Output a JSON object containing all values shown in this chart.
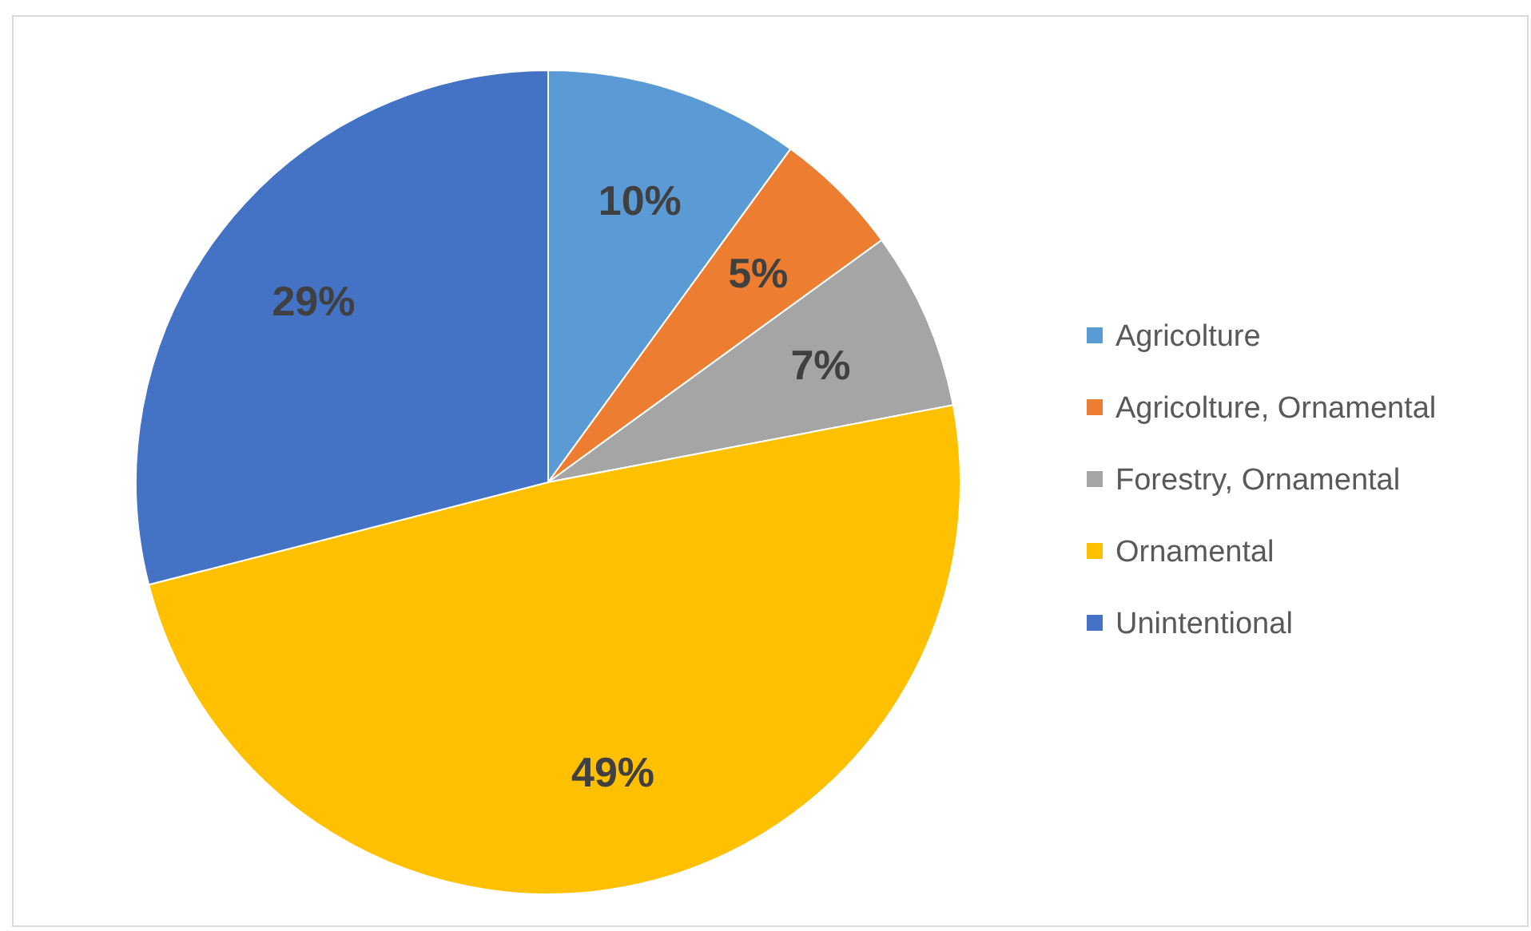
{
  "chart_data": {
    "type": "pie",
    "categories": [
      "Agricolture",
      "Agricolture, Ornamental",
      "Forestry, Ornamental",
      "Ornamental",
      "Unintentional"
    ],
    "values": [
      10,
      5,
      7,
      49,
      29
    ],
    "colors": [
      "#5b9bd5",
      "#ed7d31",
      "#a5a5a5",
      "#ffc000",
      "#4472c4"
    ],
    "value_labels": [
      "10%",
      "5%",
      "7%",
      "49%",
      "29%"
    ],
    "legend": "right"
  }
}
